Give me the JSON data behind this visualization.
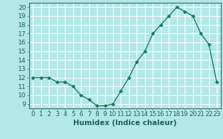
{
  "x": [
    0,
    1,
    2,
    3,
    4,
    5,
    6,
    7,
    8,
    9,
    10,
    11,
    12,
    13,
    14,
    15,
    16,
    17,
    18,
    19,
    20,
    21,
    22,
    23
  ],
  "y": [
    12,
    12,
    12,
    11.5,
    11.5,
    11,
    10,
    9.5,
    8.8,
    8.8,
    9,
    10.5,
    12,
    13.8,
    15,
    17,
    18,
    19,
    20,
    19.5,
    19,
    17,
    15.8,
    11.5
  ],
  "line_color": "#1a7a5e",
  "marker_color": "#1a7a5e",
  "bg_color": "#b3e8e8",
  "grid_color": "#ffffff",
  "xlabel": "Humidex (Indice chaleur)",
  "ylim": [
    8.5,
    20.5
  ],
  "xlim": [
    -0.5,
    23.5
  ],
  "yticks": [
    9,
    10,
    11,
    12,
    13,
    14,
    15,
    16,
    17,
    18,
    19,
    20
  ],
  "xticks": [
    0,
    1,
    2,
    3,
    4,
    5,
    6,
    7,
    8,
    9,
    10,
    11,
    12,
    13,
    14,
    15,
    16,
    17,
    18,
    19,
    20,
    21,
    22,
    23
  ],
  "xlabel_fontsize": 7.5,
  "tick_fontsize": 6.5,
  "line_width": 1.0,
  "marker_size": 2.5
}
